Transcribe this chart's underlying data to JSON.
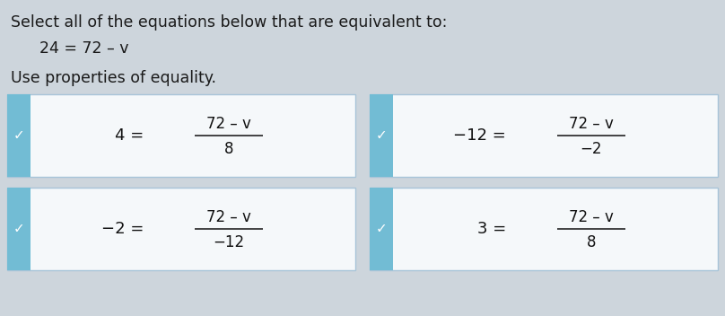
{
  "title_line1": "Select all of the equations below that are equivalent to:",
  "equation_main": "24 = 72 – v",
  "subtitle": "Use properties of equality.",
  "bg_color": "#cdd5dc",
  "card_bg": "#f5f8fa",
  "card_border": "#a8c4d8",
  "side_tab_color": "#72bcd4",
  "check_color": "white",
  "cards": [
    {
      "left": "4 =",
      "numerator": "72 – v",
      "denominator": "8",
      "row": 0,
      "col": 0
    },
    {
      "left": "−12 =",
      "numerator": "72 – v",
      "denominator": "−2",
      "row": 0,
      "col": 1
    },
    {
      "left": "−2 =",
      "numerator": "72 – v",
      "denominator": "−12",
      "row": 1,
      "col": 0
    },
    {
      "left": "3 =",
      "numerator": "72 – v",
      "denominator": "8",
      "row": 1,
      "col": 1
    }
  ],
  "title_fontsize": 12.5,
  "main_eq_fontsize": 12.5,
  "subtitle_fontsize": 12.5,
  "card_eq_fontsize": 13,
  "figsize": [
    8.08,
    3.52
  ],
  "dpi": 100
}
